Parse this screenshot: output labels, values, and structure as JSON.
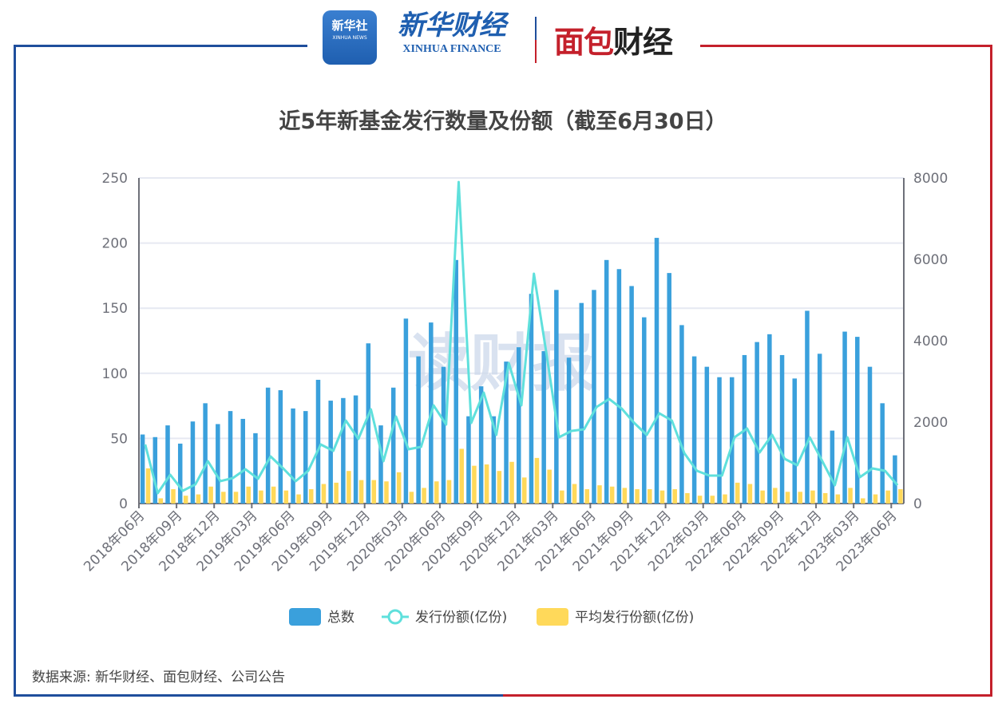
{
  "header": {
    "logo_xinhua_news": "新华社",
    "logo_xinhua_news_en": "XINHUA NEWS",
    "logo_xinhua_finance": "新华财经",
    "logo_xinhua_finance_en": "XINHUA FINANCE",
    "logo_mianbao_a": "面包",
    "logo_mianbao_b": "财经"
  },
  "watermark": "读财报",
  "source": "数据来源: 新华财经、面包财经、公司公告",
  "colors": {
    "total": "#3aa0dc",
    "amount": "#5fe0dc",
    "avg": "#ffd95a",
    "frame_blue": "#1f4e9c",
    "frame_red": "#c4202b"
  },
  "chart_data": {
    "type": "bar",
    "title": "近5年新基金发行数量及份额（截至6月30日）",
    "x": [
      "2018年06月",
      "2018年07月",
      "2018年08月",
      "2018年09月",
      "2018年10月",
      "2018年11月",
      "2018年12月",
      "2019年01月",
      "2019年02月",
      "2019年03月",
      "2019年04月",
      "2019年05月",
      "2019年06月",
      "2019年07月",
      "2019年08月",
      "2019年09月",
      "2019年10月",
      "2019年11月",
      "2019年12月",
      "2020年01月",
      "2020年02月",
      "2020年03月",
      "2020年04月",
      "2020年05月",
      "2020年06月",
      "2020年07月",
      "2020年08月",
      "2020年09月",
      "2020年10月",
      "2020年11月",
      "2020年12月",
      "2021年01月",
      "2021年02月",
      "2021年03月",
      "2021年04月",
      "2021年05月",
      "2021年06月",
      "2021年07月",
      "2021年08月",
      "2021年09月",
      "2021年10月",
      "2021年11月",
      "2021年12月",
      "2022年01月",
      "2022年02月",
      "2022年03月",
      "2022年04月",
      "2022年05月",
      "2022年06月",
      "2022年07月",
      "2022年08月",
      "2022年09月",
      "2022年10月",
      "2022年11月",
      "2022年12月",
      "2023年01月",
      "2023年02月",
      "2023年03月",
      "2023年04月",
      "2023年05月",
      "2023年06月"
    ],
    "x_tick_every": 3,
    "left_axis": {
      "ylim": [
        0,
        250
      ],
      "ticks": [
        0,
        50,
        100,
        150,
        200,
        250
      ]
    },
    "right_axis": {
      "ylim": [
        0,
        8000
      ],
      "ticks": [
        0,
        2000,
        4000,
        6000,
        8000
      ]
    },
    "grid": true,
    "legend_position": "bottom",
    "series": [
      {
        "name": "总数",
        "type": "bar",
        "axis": "left",
        "values": [
          53,
          51,
          60,
          46,
          63,
          77,
          61,
          71,
          65,
          54,
          89,
          87,
          73,
          71,
          95,
          79,
          81,
          83,
          123,
          60,
          89,
          142,
          113,
          139,
          105,
          187,
          67,
          90,
          67,
          109,
          120,
          161,
          117,
          164,
          112,
          154,
          164,
          187,
          180,
          167,
          143,
          204,
          177,
          137,
          113,
          105,
          97,
          97,
          114,
          124,
          130,
          114,
          96,
          148,
          115,
          56,
          132,
          128,
          105,
          77,
          37
        ]
      },
      {
        "name": "发行份额(亿份)",
        "type": "line",
        "axis": "right",
        "values": [
          1450,
          255,
          706,
          314,
          470,
          1040,
          550,
          627,
          843,
          608,
          1157,
          863,
          549,
          804,
          1451,
          1294,
          2039,
          1588,
          2314,
          1040,
          2137,
          1333,
          1392,
          2412,
          1941,
          7900,
          1980,
          2725,
          1686,
          3451,
          2412,
          5647,
          3686,
          1627,
          1784,
          1823,
          2373,
          2569,
          2333,
          1980,
          1686,
          2216,
          2039,
          1235,
          804,
          686,
          686,
          1627,
          1843,
          1255,
          1686,
          1098,
          941,
          1627,
          1040,
          451,
          1627,
          647,
          863,
          804,
          451
        ]
      },
      {
        "name": "平均发行份额(亿份)",
        "type": "bar",
        "axis": "left",
        "values": [
          27,
          4,
          11,
          6,
          7,
          13,
          9,
          9,
          13,
          10,
          13,
          10,
          7,
          11,
          15,
          16,
          25,
          18,
          18,
          17,
          24,
          9,
          12,
          17,
          18,
          42,
          29,
          30,
          25,
          32,
          20,
          35,
          26,
          10,
          15,
          11,
          14,
          13,
          12,
          11,
          11,
          10,
          11,
          8,
          6,
          6,
          7,
          16,
          15,
          10,
          12,
          9,
          9,
          10,
          8,
          7,
          12,
          4,
          7,
          10,
          11
        ]
      }
    ]
  }
}
